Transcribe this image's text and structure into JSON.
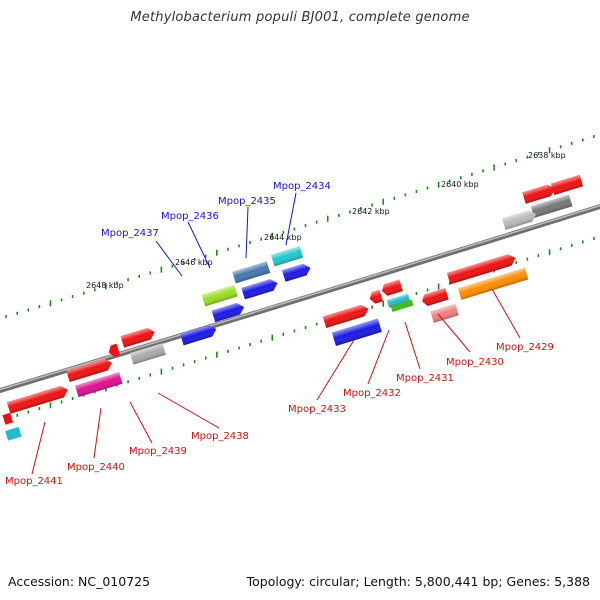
{
  "title": "Methylobacterium populi BJ001, complete genome",
  "accession": "Accession: NC_010725",
  "topology": "Topology: circular; Length: 5,800,441 bp; Genes: 5,388",
  "colors": {
    "label_top": "#1515c8",
    "label_bottom": "#cc1111",
    "tick": "#1a8a1a",
    "backbone": "#777777"
  },
  "kbp_labels": [
    "2638 kbp",
    "2640 kbp",
    "2642 kbp",
    "2644 kbp",
    "2646 kbp",
    "2648 kbp"
  ],
  "genes_top": [
    "Mpop_2434",
    "Mpop_2435",
    "Mpop_2436",
    "Mpop_2437"
  ],
  "genes_bottom": [
    "Mpop_2429",
    "Mpop_2430",
    "Mpop_2431",
    "Mpop_2432",
    "Mpop_2433",
    "Mpop_2438",
    "Mpop_2439",
    "Mpop_2440",
    "Mpop_2441"
  ]
}
